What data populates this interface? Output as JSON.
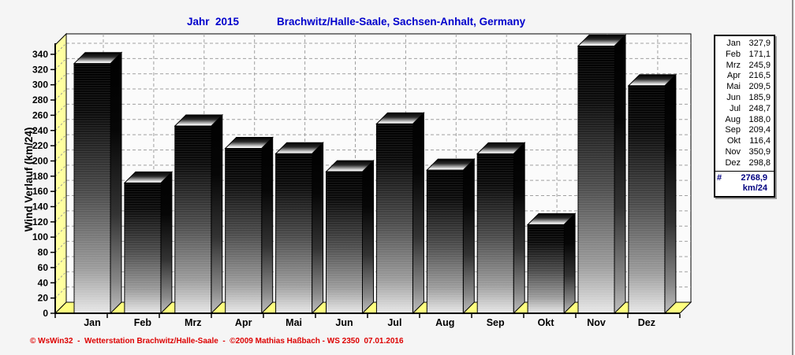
{
  "chart_data": {
    "type": "bar",
    "title": "Jahr  2015",
    "subtitle": "Brachwitz/Halle-Saale, Sachsen-Anhalt, Germany",
    "categories": [
      "Jan",
      "Feb",
      "Mrz",
      "Apr",
      "Mai",
      "Jun",
      "Jul",
      "Aug",
      "Sep",
      "Okt",
      "Nov",
      "Dez"
    ],
    "values": [
      327.9,
      171.1,
      245.9,
      216.5,
      209.5,
      185.9,
      248.7,
      188.0,
      209.4,
      116.4,
      350.9,
      298.8
    ],
    "total_km24": 2768.9,
    "xlabel": "",
    "ylabel": "Wind Verlauf  (km/24)",
    "ylim": [
      0,
      352
    ],
    "ytick_step": 20,
    "ytick_max": 340,
    "grid": true,
    "legend_position": "right",
    "style": "3d-black-gradient-bars",
    "decimal_separator": ",",
    "colors": {
      "wall": "#ffffa0",
      "floor": "#ffff80",
      "grid": "#a0a0a0",
      "bar_top": "#000000",
      "bar_bottom": "#e8e8e8",
      "plot_background": "#fbfbfb"
    }
  },
  "title": {
    "color": "#0000cc"
  },
  "legend": {
    "rows": [
      {
        "label": "Jan",
        "value": "327,9"
      },
      {
        "label": "Feb",
        "value": "171,1"
      },
      {
        "label": "Mrz",
        "value": "245,9"
      },
      {
        "label": "Apr",
        "value": "216,5"
      },
      {
        "label": "Mai",
        "value": "209,5"
      },
      {
        "label": "Jun",
        "value": "185,9"
      },
      {
        "label": "Jul",
        "value": "248,7"
      },
      {
        "label": "Aug",
        "value": "188,0"
      },
      {
        "label": "Sep",
        "value": "209,4"
      },
      {
        "label": "Okt",
        "value": "116,4"
      },
      {
        "label": "Nov",
        "value": "350,9"
      },
      {
        "label": "Dez",
        "value": "298,8"
      }
    ],
    "total": {
      "symbol": "#",
      "value": "2768,9",
      "unit": "km/24"
    },
    "total_color": "#000080"
  },
  "footer": {
    "text": "© WsWin32  -  Wetterstation Brachwitz/Halle-Saale  -  ©2009 Mathias Haßbach - WS 2350  07.01.2016",
    "color": "#dd0000"
  }
}
